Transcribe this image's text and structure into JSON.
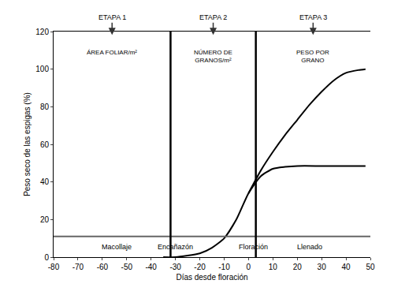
{
  "chart_data": {
    "type": "line",
    "xlabel": "Días desde floración",
    "ylabel": "Peso seco de las espigas (%)",
    "xlim": [
      -80,
      50
    ],
    "xticks": [
      -80,
      -70,
      -60,
      -50,
      -40,
      -30,
      -20,
      -10,
      0,
      10,
      20,
      30,
      40,
      50
    ],
    "ylim": [
      0,
      120
    ],
    "yticks": [
      0,
      20,
      40,
      60,
      80,
      100,
      120
    ],
    "y2lim": [
      0,
      120
    ],
    "y2ticks": [
      0,
      20,
      40,
      60,
      80,
      100,
      120
    ],
    "grid": false,
    "series": [
      {
        "color": "#000000",
        "line_style": "solid",
        "x": [
          -35,
          -30,
          -20,
          -15,
          -10,
          -5,
          0,
          5,
          10,
          15,
          20,
          30,
          40,
          48
        ],
        "values": [
          0,
          0,
          2,
          5,
          10,
          20,
          34,
          43,
          47,
          48,
          48.5,
          48.5,
          48.5,
          48.5
        ]
      },
      {
        "color": "#000000",
        "line_style": "solid",
        "x": [
          0,
          5,
          10,
          15,
          20,
          25,
          30,
          35,
          40,
          45,
          48
        ],
        "values": [
          34,
          46,
          56,
          65,
          73,
          81,
          88,
          94,
          98,
          99.5,
          100
        ]
      },
      {
        "color": "#666666",
        "line_style": "solid",
        "x": [
          -80,
          50
        ],
        "values": [
          11,
          11
        ]
      }
    ],
    "stage_boundaries": [
      -32,
      3
    ],
    "stages": [
      {
        "label": "ETAPA 1",
        "component": "ÁREA FOLIAR/m²"
      },
      {
        "label": "ETAPA 2",
        "component": "NÚMERO DE\nGRANOS/m²"
      },
      {
        "label": "ETAPA 3",
        "component": "PESO POR\nGRANO"
      }
    ],
    "phases": [
      {
        "text": "Macollaje",
        "x": -54
      },
      {
        "text": "Encañazón",
        "x": -30
      },
      {
        "text": "Floración",
        "x": 2
      },
      {
        "text": "Llenado",
        "x": 25
      }
    ]
  }
}
